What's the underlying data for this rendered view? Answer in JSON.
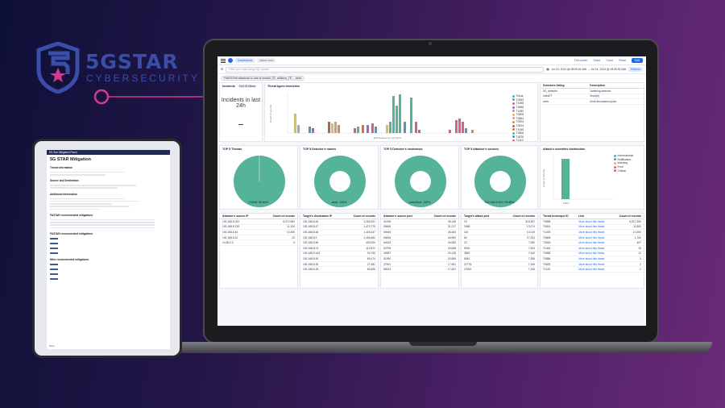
{
  "brand": {
    "name": "5GSTAR",
    "subtitle": "CYBERSECURITY",
    "accent": "#3a4ea8"
  },
  "dashboard": {
    "topbar": {
      "tabs": [
        "Dashboards",
        "Attack view"
      ],
      "actions": [
        "Full screen",
        "Share",
        "Clone",
        "Reset"
      ],
      "edit_label": "Edit"
    },
    "query": {
      "placeholder": "Filter your data using KQL syntax",
      "date_range": "Jul 15, 2024 @ 08:09:51.646 → Jul 16, 2024 @ 08:09:51.646",
      "refresh_label": "Refresh"
    },
    "filter_pill": "FMC/STAR.attackcat: is one of unauth_TE, collision_TE, ...more",
    "incidents": {
      "title": "Incidents",
      "tag": "Full Of Mess",
      "label": "Incidents in last 24h",
      "value": "--"
    },
    "threat_types": {
      "title": "Threat types timeseries",
      "x_label": "@timestamp per 10 hours",
      "y_label": "Count of records",
      "legend": [
        "Tcbus",
        "T0853",
        "T1065",
        "T0866",
        "T1082",
        "T0808",
        "T0854",
        "T0903",
        "T0814",
        "T1065",
        "T0806",
        "T0876",
        "T1110"
      ],
      "legend_colors": [
        "#54b399",
        "#6092c0",
        "#d36086",
        "#9170b8",
        "#ca8eae",
        "#d6bf57",
        "#b9a888",
        "#da8b45",
        "#aa6556",
        "#e7664c",
        "#54b399",
        "#6092c0",
        "#d36086"
      ]
    },
    "detectors_table": {
      "headers": [
        "Detectors listing",
        "Description"
      ],
      "rows": [
        [
          "5G_detector",
          "Jamming detector"
        ],
        [
          "rulesET",
          "Snort(e)"
        ],
        [
          "zeek",
          "Zeek anomalous ipv6c"
        ]
      ]
    },
    "pies": [
      {
        "title": "TOP 5 Threats",
        "label": "T0848: 99.64%"
      },
      {
        "title": "TOP 5 Detector's names",
        "label": "zeek: 100%"
      },
      {
        "title": "TOP 5 Detector's hostnames",
        "label": "unscribed: 100%"
      },
      {
        "title": "TOP 5 Attacker's sources",
        "label": "192.168.8.200: 99.88%"
      }
    ],
    "severities": {
      "title": "Attack's severities distribution",
      "y_label": "Count of records",
      "x_label": "Filters",
      "legend": [
        "Informational",
        "Notification",
        "Warning",
        "Error",
        "Critical"
      ],
      "legend_colors": [
        "#54b399",
        "#6092c0",
        "#d6bf57",
        "#e7664c",
        "#d36086"
      ]
    },
    "tables": [
      {
        "headers": [
          "Attacker's source IP",
          "Count of records"
        ],
        "rows": [
          [
            "192.168.8.200",
            "6,972,983"
          ],
          [
            "192.168.8.139",
            "11,100"
          ],
          [
            "192.168.8.40",
            "10,390"
          ],
          [
            "192.168.8.10",
            "22"
          ],
          [
            "10.65.0.2",
            "3"
          ]
        ]
      },
      {
        "headers": [
          "Target's destination IP",
          "Count of records"
        ],
        "rows": [
          [
            "192.168.8.44",
            "1,263,921"
          ],
          [
            "192.168.8.47",
            "1,470,775"
          ],
          [
            "192.168.8.46",
            "1,403,247"
          ],
          [
            "192.168.8.2",
            "1,406,652"
          ],
          [
            "192.168.8.48",
            "430,929"
          ],
          [
            "192.168.8.74",
            "113,572"
          ],
          [
            "192.168.8.143",
            "90,753"
          ],
          [
            "192.168.8.90",
            "89,474"
          ],
          [
            "192.168.8.30",
            "27,381"
          ],
          [
            "192.168.8.25",
            "80,836"
          ]
        ]
      },
      {
        "headers": [
          "Attacker's source port",
          "Count of records"
        ],
        "rows": [
          [
            "41005",
            "38,145"
          ],
          [
            "59466",
            "31,217"
          ],
          [
            "59946",
            "28,484"
          ],
          [
            "53816",
            "26,953"
          ],
          [
            "60163",
            "26,983"
          ],
          [
            "52799",
            "26,638"
          ],
          [
            "49387",
            "20,128"
          ],
          [
            "51990",
            "20,589"
          ],
          [
            "37491",
            "17,981"
          ],
          [
            "55023",
            "17,821"
          ]
        ]
      },
      {
        "headers": [
          "Target's attack port",
          "Count of records"
        ],
        "rows": [
          [
            "23",
            "315,397"
          ],
          [
            "3456",
            "13,074"
          ],
          [
            "110",
            "10,019"
          ],
          [
            "80",
            "27,324"
          ],
          [
            "23",
            "7,550"
          ],
          [
            "5900",
            "7,303"
          ],
          [
            "3663",
            "7,342"
          ],
          [
            "8081",
            "7,288"
          ],
          [
            "22778",
            "7,269"
          ],
          [
            "27900",
            "7,205"
          ]
        ]
      },
      {
        "headers": [
          "Threat technique ID",
          "Link",
          "Count of records"
        ],
        "rows": [
          [
            "T0858",
            "More about this threat",
            "6,917,392"
          ],
          [
            "T0814",
            "More about this threat",
            "11,800"
          ],
          [
            "T1029",
            "More about this threat",
            "10,390"
          ],
          [
            "T0808",
            "More about this threat",
            "1,762"
          ],
          [
            "T0815",
            "More about this threat",
            "497"
          ],
          [
            "T1444",
            "More about this threat",
            "15"
          ],
          [
            "T0856",
            "More about this threat",
            "12"
          ],
          [
            "T0856",
            "More about this threat",
            "3"
          ],
          [
            "T0826",
            "More about this threat",
            "2"
          ],
          [
            "T1126",
            "More about this threat",
            "2"
          ]
        ]
      }
    ]
  },
  "tablet_doc": {
    "header": "5G Star Mitigation Panel",
    "title": "5G STAR Mitigation",
    "sections": [
      "Threat information",
      "Source and Destination",
      "Additional information",
      "FASTAR recommended mitigations",
      "FASTAR recommended mitigations",
      "Mitre recommended mitigations"
    ],
    "footer": "Back"
  }
}
